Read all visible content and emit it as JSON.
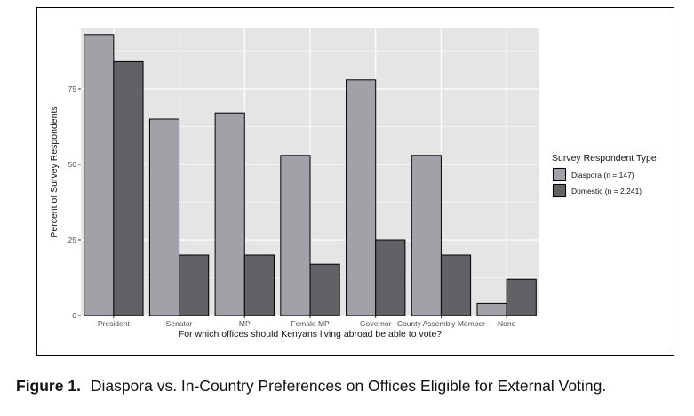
{
  "chart_data": {
    "type": "bar",
    "title": "",
    "xlabel": "For which offices should Kenyans living abroad be able to vote?",
    "ylabel": "Percent of Survey Respondents",
    "categories": [
      "President",
      "Senator",
      "MP",
      "Female MP",
      "Governor",
      "County Assembly Member",
      "None"
    ],
    "series": [
      {
        "name": "Diaspora (n = 147)",
        "values": [
          93,
          65,
          67,
          53,
          78,
          53,
          4
        ],
        "color": "#a3a1a8"
      },
      {
        "name": "Domestic (n = 2,241)",
        "values": [
          84,
          20,
          20,
          17,
          25,
          20,
          12
        ],
        "color": "#636066"
      }
    ],
    "ylim": [
      0,
      95
    ],
    "yticks": [
      0,
      25,
      50,
      75
    ],
    "grid": true,
    "legend_title": "Survey Respondent Type",
    "legend_position": "right",
    "panel_background": "#e5e5e5",
    "grid_color": "#ffffff"
  },
  "caption": {
    "label": "Figure 1.",
    "text": "Diaspora vs. In-Country Preferences on Offices Eligible for External Voting."
  }
}
